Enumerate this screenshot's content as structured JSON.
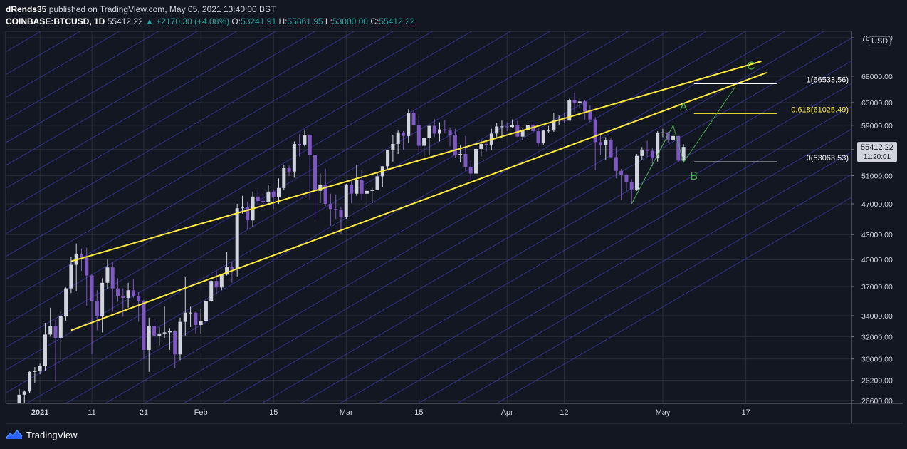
{
  "header": {
    "author": "dRends35",
    "published": " published on TradingView.com, May 05, 2021 13:40:00 BST",
    "symbol": "COINBASE:BTCUSD, 1D",
    "last": "55412.22",
    "change_arrow": "▲",
    "change": "+2170.30 (+4.08%)",
    "o_label": "O:",
    "o": "53241.91",
    "h_label": "H:",
    "h": "55861.95",
    "l_label": "L:",
    "l": "53000.00",
    "c_label": "C:",
    "c": "55412.22"
  },
  "currency": "USD",
  "footer": {
    "brand": "TradingView",
    "logo_icon": "tradingview-logo-icon"
  },
  "colors": {
    "background": "#131722",
    "grid": "#2a2e39",
    "bull": "#d1d4dc",
    "bear": "#7e57c2",
    "channel": "#ffeb3b",
    "pitchfan": "#3d3aa8",
    "fib_label": "#ffeb3b",
    "wave": "#4caf50"
  },
  "chart_data": {
    "type": "candlestick",
    "x_ticks": [
      "2021",
      "11",
      "21",
      "Feb",
      "15",
      "Mar",
      "15",
      "Apr",
      "12",
      "May",
      "17"
    ],
    "y_ticks": [
      26600,
      28200,
      30000,
      32000,
      34000,
      37000,
      40000,
      43000,
      47000,
      51000,
      55000,
      59000,
      63000,
      68000,
      76000
    ],
    "y_tick_labels": [
      "26600.00",
      "28200.00",
      "30000.00",
      "32000.00",
      "34000.00",
      "37000.00",
      "40000.00",
      "43000.00",
      "47000.00",
      "51000.00",
      "55000.00",
      "59000.00",
      "63000.00",
      "68000.00",
      "76000.00"
    ],
    "price_scale": "log",
    "last_price_label": "55412.22",
    "countdown_label": "11:20:01",
    "date_range": [
      "2020-12-28",
      "2021-05-05"
    ],
    "candles": [
      {
        "d": "2020-12-28",
        "o": 26300,
        "h": 27500,
        "l": 26100,
        "c": 27050
      },
      {
        "d": "2020-12-29",
        "o": 27050,
        "h": 27400,
        "l": 25900,
        "c": 27300
      },
      {
        "d": "2020-12-30",
        "o": 27300,
        "h": 28980,
        "l": 27200,
        "c": 28900
      },
      {
        "d": "2020-12-31",
        "o": 28900,
        "h": 29300,
        "l": 28000,
        "c": 29000
      },
      {
        "d": "2021-01-01",
        "o": 29000,
        "h": 29600,
        "l": 28700,
        "c": 29400
      },
      {
        "d": "2021-01-02",
        "o": 29400,
        "h": 33300,
        "l": 29000,
        "c": 32200
      },
      {
        "d": "2021-01-03",
        "o": 32200,
        "h": 34800,
        "l": 32000,
        "c": 33000
      },
      {
        "d": "2021-01-04",
        "o": 33000,
        "h": 33600,
        "l": 28100,
        "c": 31900
      },
      {
        "d": "2021-01-05",
        "o": 31900,
        "h": 34400,
        "l": 29900,
        "c": 34000
      },
      {
        "d": "2021-01-06",
        "o": 34000,
        "h": 36900,
        "l": 33500,
        "c": 36800
      },
      {
        "d": "2021-01-07",
        "o": 36800,
        "h": 40300,
        "l": 36300,
        "c": 39400
      },
      {
        "d": "2021-01-08",
        "o": 39400,
        "h": 41900,
        "l": 36500,
        "c": 40600
      },
      {
        "d": "2021-01-09",
        "o": 40600,
        "h": 41300,
        "l": 38700,
        "c": 40300
      },
      {
        "d": "2021-01-10",
        "o": 40300,
        "h": 41400,
        "l": 35000,
        "c": 38200
      },
      {
        "d": "2021-01-11",
        "o": 38200,
        "h": 38300,
        "l": 30400,
        "c": 35500
      },
      {
        "d": "2021-01-12",
        "o": 35500,
        "h": 36600,
        "l": 32600,
        "c": 34000
      },
      {
        "d": "2021-01-13",
        "o": 34000,
        "h": 37900,
        "l": 32400,
        "c": 37400
      },
      {
        "d": "2021-01-14",
        "o": 37400,
        "h": 40000,
        "l": 36700,
        "c": 39100
      },
      {
        "d": "2021-01-15",
        "o": 39100,
        "h": 39700,
        "l": 34400,
        "c": 36800
      },
      {
        "d": "2021-01-16",
        "o": 36800,
        "h": 37900,
        "l": 35400,
        "c": 36000
      },
      {
        "d": "2021-01-17",
        "o": 36000,
        "h": 36800,
        "l": 33900,
        "c": 35800
      },
      {
        "d": "2021-01-18",
        "o": 35800,
        "h": 37400,
        "l": 34800,
        "c": 36600
      },
      {
        "d": "2021-01-19",
        "o": 36600,
        "h": 37800,
        "l": 35800,
        "c": 36000
      },
      {
        "d": "2021-01-20",
        "o": 36000,
        "h": 36400,
        "l": 33400,
        "c": 35500
      },
      {
        "d": "2021-01-21",
        "o": 35500,
        "h": 35600,
        "l": 30000,
        "c": 30800
      },
      {
        "d": "2021-01-22",
        "o": 30800,
        "h": 33800,
        "l": 28900,
        "c": 33000
      },
      {
        "d": "2021-01-23",
        "o": 33000,
        "h": 33500,
        "l": 31400,
        "c": 32100
      },
      {
        "d": "2021-01-24",
        "o": 32100,
        "h": 32900,
        "l": 31200,
        "c": 32300
      },
      {
        "d": "2021-01-25",
        "o": 32300,
        "h": 34900,
        "l": 31900,
        "c": 32400
      },
      {
        "d": "2021-01-26",
        "o": 32400,
        "h": 32800,
        "l": 30800,
        "c": 32500
      },
      {
        "d": "2021-01-27",
        "o": 32500,
        "h": 32600,
        "l": 29200,
        "c": 30400
      },
      {
        "d": "2021-01-28",
        "o": 30400,
        "h": 33800,
        "l": 29900,
        "c": 33400
      },
      {
        "d": "2021-01-29",
        "o": 33400,
        "h": 38000,
        "l": 32100,
        "c": 34300
      },
      {
        "d": "2021-01-30",
        "o": 34300,
        "h": 34900,
        "l": 32900,
        "c": 34300
      },
      {
        "d": "2021-01-31",
        "o": 34300,
        "h": 34400,
        "l": 32300,
        "c": 33100
      },
      {
        "d": "2021-02-01",
        "o": 33100,
        "h": 34700,
        "l": 32300,
        "c": 33500
      },
      {
        "d": "2021-02-02",
        "o": 33500,
        "h": 35900,
        "l": 33400,
        "c": 35500
      },
      {
        "d": "2021-02-03",
        "o": 35500,
        "h": 37700,
        "l": 35400,
        "c": 37600
      },
      {
        "d": "2021-02-04",
        "o": 37600,
        "h": 38700,
        "l": 36200,
        "c": 36900
      },
      {
        "d": "2021-02-05",
        "o": 36900,
        "h": 38300,
        "l": 36600,
        "c": 38300
      },
      {
        "d": "2021-02-06",
        "o": 38300,
        "h": 40900,
        "l": 38200,
        "c": 39200
      },
      {
        "d": "2021-02-07",
        "o": 39200,
        "h": 39700,
        "l": 37400,
        "c": 38900
      },
      {
        "d": "2021-02-08",
        "o": 38900,
        "h": 47000,
        "l": 38100,
        "c": 46400
      },
      {
        "d": "2021-02-09",
        "o": 46400,
        "h": 48100,
        "l": 45700,
        "c": 46500
      },
      {
        "d": "2021-02-10",
        "o": 46500,
        "h": 47300,
        "l": 43700,
        "c": 44800
      },
      {
        "d": "2021-02-11",
        "o": 44800,
        "h": 48700,
        "l": 44000,
        "c": 48000
      },
      {
        "d": "2021-02-12",
        "o": 48000,
        "h": 48900,
        "l": 46300,
        "c": 47400
      },
      {
        "d": "2021-02-13",
        "o": 47400,
        "h": 48200,
        "l": 46300,
        "c": 47200
      },
      {
        "d": "2021-02-14",
        "o": 47200,
        "h": 49700,
        "l": 47000,
        "c": 48700
      },
      {
        "d": "2021-02-15",
        "o": 48700,
        "h": 49000,
        "l": 46300,
        "c": 47900
      },
      {
        "d": "2021-02-16",
        "o": 47900,
        "h": 50600,
        "l": 47000,
        "c": 49200
      },
      {
        "d": "2021-02-17",
        "o": 49200,
        "h": 52600,
        "l": 48900,
        "c": 52100
      },
      {
        "d": "2021-02-18",
        "o": 52100,
        "h": 52500,
        "l": 50900,
        "c": 51600
      },
      {
        "d": "2021-02-19",
        "o": 51600,
        "h": 56300,
        "l": 50700,
        "c": 55900
      },
      {
        "d": "2021-02-20",
        "o": 55900,
        "h": 57500,
        "l": 53900,
        "c": 55800
      },
      {
        "d": "2021-02-21",
        "o": 55800,
        "h": 58300,
        "l": 55500,
        "c": 57400
      },
      {
        "d": "2021-02-22",
        "o": 57400,
        "h": 57500,
        "l": 47600,
        "c": 54100
      },
      {
        "d": "2021-02-23",
        "o": 54100,
        "h": 54200,
        "l": 44900,
        "c": 48800
      },
      {
        "d": "2021-02-24",
        "o": 48800,
        "h": 51300,
        "l": 47100,
        "c": 49700
      },
      {
        "d": "2021-02-25",
        "o": 49700,
        "h": 52000,
        "l": 46700,
        "c": 47000
      },
      {
        "d": "2021-02-26",
        "o": 47000,
        "h": 48400,
        "l": 44100,
        "c": 46300
      },
      {
        "d": "2021-02-27",
        "o": 46300,
        "h": 48300,
        "l": 45000,
        "c": 46200
      },
      {
        "d": "2021-02-28",
        "o": 46200,
        "h": 46600,
        "l": 43000,
        "c": 45200
      },
      {
        "d": "2021-03-01",
        "o": 45200,
        "h": 49800,
        "l": 45000,
        "c": 49600
      },
      {
        "d": "2021-03-02",
        "o": 49600,
        "h": 50200,
        "l": 47100,
        "c": 48400
      },
      {
        "d": "2021-03-03",
        "o": 48400,
        "h": 52600,
        "l": 48100,
        "c": 50400
      },
      {
        "d": "2021-03-04",
        "o": 50400,
        "h": 51800,
        "l": 47500,
        "c": 48400
      },
      {
        "d": "2021-03-05",
        "o": 48400,
        "h": 49400,
        "l": 46300,
        "c": 48800
      },
      {
        "d": "2021-03-06",
        "o": 48800,
        "h": 49200,
        "l": 47100,
        "c": 48900
      },
      {
        "d": "2021-03-07",
        "o": 48900,
        "h": 51400,
        "l": 48900,
        "c": 50900
      },
      {
        "d": "2021-03-08",
        "o": 50900,
        "h": 52400,
        "l": 49300,
        "c": 52400
      },
      {
        "d": "2021-03-09",
        "o": 52400,
        "h": 54900,
        "l": 51900,
        "c": 54900
      },
      {
        "d": "2021-03-10",
        "o": 54900,
        "h": 57400,
        "l": 53100,
        "c": 55900
      },
      {
        "d": "2021-03-11",
        "o": 55900,
        "h": 58100,
        "l": 54300,
        "c": 57800
      },
      {
        "d": "2021-03-12",
        "o": 57800,
        "h": 58000,
        "l": 55000,
        "c": 57200
      },
      {
        "d": "2021-03-13",
        "o": 57200,
        "h": 61800,
        "l": 56100,
        "c": 61200
      },
      {
        "d": "2021-03-14",
        "o": 61200,
        "h": 61700,
        "l": 59100,
        "c": 59000
      },
      {
        "d": "2021-03-15",
        "o": 59000,
        "h": 60600,
        "l": 54600,
        "c": 55600
      },
      {
        "d": "2021-03-16",
        "o": 55600,
        "h": 56900,
        "l": 53600,
        "c": 56900
      },
      {
        "d": "2021-03-17",
        "o": 56900,
        "h": 58900,
        "l": 54100,
        "c": 58900
      },
      {
        "d": "2021-03-18",
        "o": 58900,
        "h": 60100,
        "l": 57000,
        "c": 57600
      },
      {
        "d": "2021-03-19",
        "o": 57600,
        "h": 59500,
        "l": 56300,
        "c": 58300
      },
      {
        "d": "2021-03-20",
        "o": 58300,
        "h": 59900,
        "l": 57800,
        "c": 58100
      },
      {
        "d": "2021-03-21",
        "o": 58100,
        "h": 58600,
        "l": 55500,
        "c": 57400
      },
      {
        "d": "2021-03-22",
        "o": 57400,
        "h": 58400,
        "l": 53700,
        "c": 54100
      },
      {
        "d": "2021-03-23",
        "o": 54100,
        "h": 55800,
        "l": 53000,
        "c": 54300
      },
      {
        "d": "2021-03-24",
        "o": 54300,
        "h": 57200,
        "l": 51700,
        "c": 52300
      },
      {
        "d": "2021-03-25",
        "o": 52300,
        "h": 53200,
        "l": 50400,
        "c": 51300
      },
      {
        "d": "2021-03-26",
        "o": 51300,
        "h": 55100,
        "l": 51300,
        "c": 55100
      },
      {
        "d": "2021-03-27",
        "o": 55100,
        "h": 56600,
        "l": 53900,
        "c": 55900
      },
      {
        "d": "2021-03-28",
        "o": 55900,
        "h": 56500,
        "l": 54700,
        "c": 55800
      },
      {
        "d": "2021-03-29",
        "o": 55800,
        "h": 58400,
        "l": 54900,
        "c": 57600
      },
      {
        "d": "2021-03-30",
        "o": 57600,
        "h": 59400,
        "l": 57000,
        "c": 58800
      },
      {
        "d": "2021-03-31",
        "o": 58800,
        "h": 59800,
        "l": 56900,
        "c": 58800
      },
      {
        "d": "2021-04-01",
        "o": 58800,
        "h": 59500,
        "l": 58000,
        "c": 58700
      },
      {
        "d": "2021-04-02",
        "o": 58700,
        "h": 60000,
        "l": 58500,
        "c": 59000
      },
      {
        "d": "2021-04-03",
        "o": 59000,
        "h": 59800,
        "l": 57000,
        "c": 57100
      },
      {
        "d": "2021-04-04",
        "o": 57100,
        "h": 58500,
        "l": 56500,
        "c": 58200
      },
      {
        "d": "2021-04-05",
        "o": 58200,
        "h": 59200,
        "l": 56800,
        "c": 59100
      },
      {
        "d": "2021-04-06",
        "o": 59100,
        "h": 59500,
        "l": 57600,
        "c": 58000
      },
      {
        "d": "2021-04-07",
        "o": 58000,
        "h": 58600,
        "l": 55500,
        "c": 56000
      },
      {
        "d": "2021-04-08",
        "o": 56000,
        "h": 58200,
        "l": 55800,
        "c": 58100
      },
      {
        "d": "2021-04-09",
        "o": 58100,
        "h": 58900,
        "l": 57700,
        "c": 58100
      },
      {
        "d": "2021-04-10",
        "o": 58100,
        "h": 61200,
        "l": 57900,
        "c": 59800
      },
      {
        "d": "2021-04-11",
        "o": 59800,
        "h": 60700,
        "l": 59100,
        "c": 59900
      },
      {
        "d": "2021-04-12",
        "o": 59900,
        "h": 61200,
        "l": 59400,
        "c": 59800
      },
      {
        "d": "2021-04-13",
        "o": 59800,
        "h": 63700,
        "l": 59800,
        "c": 63500
      },
      {
        "d": "2021-04-14",
        "o": 63500,
        "h": 64800,
        "l": 61300,
        "c": 62900
      },
      {
        "d": "2021-04-15",
        "o": 62900,
        "h": 63700,
        "l": 62000,
        "c": 63200
      },
      {
        "d": "2021-04-16",
        "o": 63200,
        "h": 63500,
        "l": 60000,
        "c": 61400
      },
      {
        "d": "2021-04-17",
        "o": 61400,
        "h": 62500,
        "l": 59600,
        "c": 60000
      },
      {
        "d": "2021-04-18",
        "o": 60000,
        "h": 60400,
        "l": 51800,
        "c": 56200
      },
      {
        "d": "2021-04-19",
        "o": 56200,
        "h": 57500,
        "l": 54200,
        "c": 55700
      },
      {
        "d": "2021-04-20",
        "o": 55700,
        "h": 57000,
        "l": 53400,
        "c": 56500
      },
      {
        "d": "2021-04-21",
        "o": 56500,
        "h": 56800,
        "l": 53700,
        "c": 53800
      },
      {
        "d": "2021-04-22",
        "o": 53800,
        "h": 55400,
        "l": 50600,
        "c": 51700
      },
      {
        "d": "2021-04-23",
        "o": 51700,
        "h": 52000,
        "l": 47500,
        "c": 51100
      },
      {
        "d": "2021-04-24",
        "o": 51100,
        "h": 51200,
        "l": 48800,
        "c": 50000
      },
      {
        "d": "2021-04-25",
        "o": 50000,
        "h": 50500,
        "l": 47000,
        "c": 49000
      },
      {
        "d": "2021-04-26",
        "o": 49000,
        "h": 54300,
        "l": 48800,
        "c": 54000
      },
      {
        "d": "2021-04-27",
        "o": 54000,
        "h": 55400,
        "l": 53300,
        "c": 55000
      },
      {
        "d": "2021-04-28",
        "o": 55000,
        "h": 56400,
        "l": 53900,
        "c": 54800
      },
      {
        "d": "2021-04-29",
        "o": 54800,
        "h": 55200,
        "l": 52400,
        "c": 53600
      },
      {
        "d": "2021-04-30",
        "o": 53600,
        "h": 58000,
        "l": 53100,
        "c": 57700
      },
      {
        "d": "2021-05-01",
        "o": 57700,
        "h": 58400,
        "l": 57000,
        "c": 57800
      },
      {
        "d": "2021-05-02",
        "o": 57800,
        "h": 57900,
        "l": 56000,
        "c": 56600
      },
      {
        "d": "2021-05-03",
        "o": 56600,
        "h": 58900,
        "l": 56500,
        "c": 57200
      },
      {
        "d": "2021-05-04",
        "o": 57200,
        "h": 57200,
        "l": 53000,
        "c": 53240
      },
      {
        "d": "2021-05-05",
        "o": 53241.91,
        "h": 55861.95,
        "l": 53000,
        "c": 55412.22
      }
    ],
    "channel_lines": [
      {
        "from": {
          "d": "2021-01-07",
          "p": 39800
        },
        "to": {
          "d": "2021-05-20",
          "p": 71000
        }
      },
      {
        "from": {
          "d": "2021-01-07",
          "p": 32600
        },
        "to": {
          "d": "2021-05-21",
          "p": 68700
        }
      }
    ],
    "fib_levels": [
      {
        "ratio": "1",
        "value": 66533.56,
        "label": "1(66533.56)",
        "color": "#ffffff"
      },
      {
        "ratio": "0.618",
        "value": 61025.49,
        "label": "0.618(61025.49)",
        "color": "#ffeb3b"
      },
      {
        "ratio": "0",
        "value": 53063.53,
        "label": "0(53063.53)",
        "color": "#ffffff"
      }
    ],
    "fib_from_date": "2021-05-07",
    "fib_to_date": "2021-05-23",
    "wave_points": [
      {
        "d": "2021-04-25",
        "p": 47000
      },
      {
        "d": "2021-05-03",
        "p": 59000
      },
      {
        "d": "2021-05-05",
        "p": 53000
      },
      {
        "d": "2021-05-15",
        "p": 66000
      }
    ],
    "wave_labels": [
      {
        "text": "A",
        "d": "2021-05-05",
        "p": 61600
      },
      {
        "text": "B",
        "d": "2021-05-07",
        "p": 50400
      },
      {
        "text": "C",
        "d": "2021-05-18",
        "p": 69300
      }
    ]
  }
}
